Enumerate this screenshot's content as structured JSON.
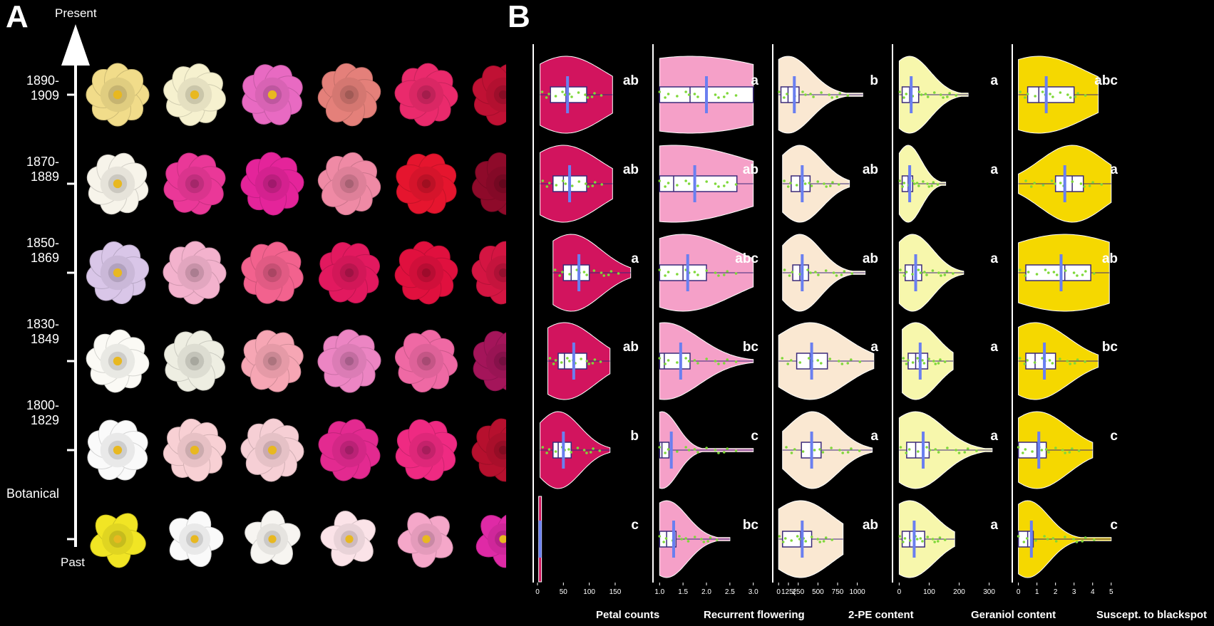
{
  "panel_labels": [
    "A",
    "B"
  ],
  "timeline": {
    "top_label": "Present",
    "bottom_label": "Past",
    "periods": [
      {
        "line1": "1890-",
        "line2": "1909"
      },
      {
        "line1": "1870-",
        "line2": "1889"
      },
      {
        "line1": "1850-",
        "line2": "1869"
      },
      {
        "line1": "1830-",
        "line2": "1849"
      },
      {
        "line1": "1800-",
        "line2": "1829"
      },
      {
        "line1": "Botanical",
        "line2": ""
      }
    ]
  },
  "flower_colors": [
    [
      "#f1dc8a",
      "#f6f1cf",
      "#e86ac2",
      "#e4807a",
      "#ea2a6c",
      "#c01134"
    ],
    [
      "#f7f4ea",
      "#ea3898",
      "#e4249a",
      "#ef8aa5",
      "#e5152e",
      "#8e0a2a"
    ],
    [
      "#d9c6e8",
      "#f3b2cd",
      "#f2628e",
      "#e2195f",
      "#e0103e",
      "#d41542"
    ],
    [
      "#fbfaf5",
      "#eeeee2",
      "#f6a6b4",
      "#ec85c3",
      "#ef69a4",
      "#a4155a"
    ],
    [
      "#fafafa",
      "#f8d0d4",
      "#f6cfd5",
      "#e32a90",
      "#ef2a82",
      "#b6102e"
    ],
    [
      "#f1e524",
      "#fafafa",
      "#f7f5f1",
      "#fbe3e8",
      "#f5a7c9",
      "#df2aa6"
    ]
  ],
  "chart_data": [
    {
      "type": "violin",
      "xlabel": "Petal counts",
      "ticks": [
        "0",
        "50",
        "100",
        "150"
      ],
      "xlim": [
        0,
        190
      ],
      "fill": "#d2145e",
      "groups": [
        "1890-1909",
        "1870-1889",
        "1850-1869",
        "1830-1849",
        "1800-1829",
        "Botanical"
      ],
      "letters": [
        "ab",
        "ab",
        "a",
        "ab",
        "b",
        "c"
      ],
      "median": [
        55,
        50,
        65,
        52,
        40,
        5
      ],
      "q1": [
        25,
        30,
        50,
        40,
        30,
        5
      ],
      "q3": [
        95,
        95,
        100,
        95,
        65,
        5
      ],
      "mean": [
        58,
        62,
        80,
        70,
        50,
        5
      ],
      "min": [
        5,
        5,
        30,
        20,
        5,
        5
      ],
      "max": [
        145,
        145,
        180,
        140,
        140,
        5
      ]
    },
    {
      "type": "violin",
      "xlabel": "Recurrent flowering",
      "ticks": [
        "1.0",
        "1.5",
        "2.0",
        "2.5",
        "3.0"
      ],
      "xlim": [
        0.95,
        3.05
      ],
      "fill": "#f5a0c8",
      "groups": [
        "1890-1909",
        "1870-1889",
        "1850-1869",
        "1830-1849",
        "1800-1829",
        "Botanical"
      ],
      "letters": [
        "a",
        "ab",
        "abc",
        "bc",
        "c",
        "bc"
      ],
      "median": [
        1.65,
        1.3,
        1.5,
        1.1,
        1.05,
        1.15
      ],
      "q1": [
        1.0,
        1.0,
        1.0,
        1.0,
        1.0,
        1.0
      ],
      "q3": [
        3.0,
        2.65,
        2.0,
        1.65,
        1.2,
        1.35
      ],
      "mean": [
        2.0,
        1.75,
        1.6,
        1.45,
        1.25,
        1.3
      ],
      "min": [
        1.0,
        1.0,
        1.0,
        1.0,
        1.0,
        1.0
      ],
      "max": [
        3.0,
        3.0,
        3.0,
        3.0,
        3.0,
        2.5
      ]
    },
    {
      "type": "violin",
      "xlabel": "2-PE content",
      "ticks": [
        "0",
        "250",
        "500",
        "750",
        "1000",
        "125("
      ],
      "xlim": [
        -20,
        1230
      ],
      "fill": "#fae8d2",
      "groups": [
        "1890-1909",
        "1870-1889",
        "1850-1869",
        "1830-1849",
        "1800-1829",
        "Botanical"
      ],
      "letters": [
        "b",
        "ab",
        "ab",
        "a",
        "a",
        "ab"
      ],
      "median": [
        120,
        270,
        270,
        400,
        430,
        280
      ],
      "q1": [
        30,
        160,
        180,
        230,
        290,
        50
      ],
      "q3": [
        260,
        400,
        380,
        620,
        540,
        420
      ],
      "mean": [
        200,
        300,
        300,
        420,
        420,
        300
      ],
      "min": [
        0,
        50,
        50,
        0,
        50,
        0
      ],
      "max": [
        1070,
        900,
        1100,
        1210,
        1190,
        820
      ]
    },
    {
      "type": "violin",
      "xlabel": "Geraniol content",
      "ticks": [
        "0",
        "100",
        "200",
        "300"
      ],
      "xlim": [
        -8,
        320
      ],
      "fill": "#f7f7ac",
      "groups": [
        "1890-1909",
        "1870-1889",
        "1850-1869",
        "1830-1849",
        "1800-1829",
        "Botanical"
      ],
      "letters": [
        "a",
        "a",
        "a",
        "a",
        "a",
        "a"
      ],
      "median": [
        35,
        30,
        45,
        55,
        55,
        35
      ],
      "q1": [
        10,
        10,
        20,
        30,
        25,
        10
      ],
      "q3": [
        65,
        45,
        75,
        95,
        100,
        85
      ],
      "mean": [
        40,
        35,
        55,
        70,
        80,
        50
      ],
      "min": [
        0,
        0,
        0,
        10,
        0,
        0
      ],
      "max": [
        230,
        155,
        215,
        180,
        310,
        185
      ]
    },
    {
      "type": "violin",
      "xlabel": "Suscept. to blackspot",
      "ticks": [
        "0",
        "1",
        "2",
        "3",
        "4",
        "5"
      ],
      "xlim": [
        -0.1,
        5.2
      ],
      "fill": "#f5d800",
      "groups": [
        "1890-1909",
        "1870-1889",
        "1850-1869",
        "1830-1849",
        "1800-1829",
        "Botanical"
      ],
      "letters": [
        "abc",
        "a",
        "ab",
        "bc",
        "c",
        "c"
      ],
      "median": [
        1.1,
        2.9,
        2.5,
        0.9,
        1.0,
        0.5
      ],
      "q1": [
        0.5,
        2.0,
        0.4,
        0.4,
        0.0,
        0.0
      ],
      "q3": [
        3.0,
        3.5,
        3.9,
        2.0,
        1.5,
        0.8
      ],
      "mean": [
        1.5,
        2.5,
        2.3,
        1.4,
        1.1,
        0.7
      ],
      "min": [
        0.0,
        0.0,
        0.0,
        0.0,
        0.0,
        0.0
      ],
      "max": [
        4.3,
        5.0,
        4.9,
        4.3,
        4.0,
        5.0
      ]
    }
  ]
}
